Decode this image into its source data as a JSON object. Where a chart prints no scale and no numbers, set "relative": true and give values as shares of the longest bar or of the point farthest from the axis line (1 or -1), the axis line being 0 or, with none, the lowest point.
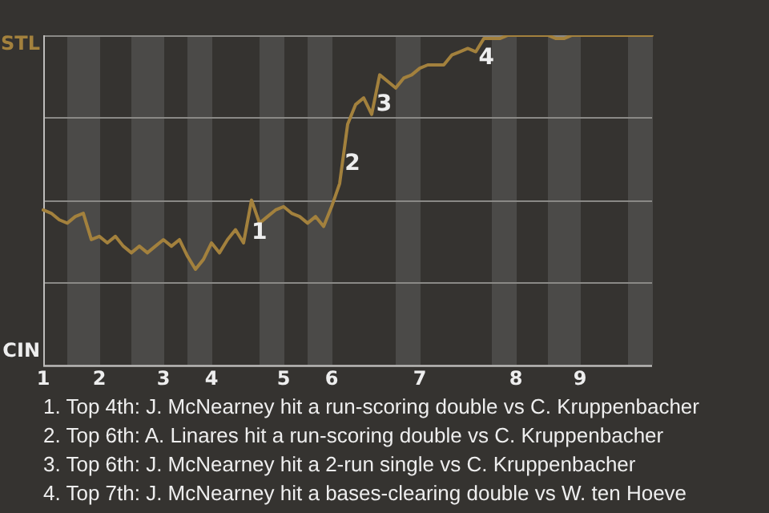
{
  "chart_data": {
    "type": "line",
    "categories": [
      "1",
      null,
      null,
      null,
      null,
      null,
      null,
      "2",
      null,
      null,
      null,
      null,
      null,
      null,
      null,
      "3",
      null,
      null,
      null,
      null,
      null,
      "4",
      null,
      null,
      null,
      null,
      null,
      null,
      null,
      null,
      "5",
      null,
      null,
      null,
      null,
      null,
      "6",
      null,
      null,
      null,
      null,
      null,
      null,
      null,
      null,
      null,
      null,
      "7",
      null,
      null,
      null,
      null,
      null,
      null,
      null,
      null,
      null,
      null,
      null,
      "8",
      null,
      null,
      null,
      null,
      null,
      null,
      null,
      "9",
      null,
      null,
      null,
      null,
      null,
      null,
      null,
      null,
      null
    ],
    "relative": true,
    "values": [
      0.47,
      0.46,
      0.44,
      0.43,
      0.45,
      0.46,
      0.38,
      0.39,
      0.37,
      0.39,
      0.36,
      0.34,
      0.36,
      0.34,
      0.36,
      0.38,
      0.36,
      0.38,
      0.33,
      0.29,
      0.32,
      0.37,
      0.34,
      0.38,
      0.41,
      0.37,
      0.5,
      0.43,
      0.45,
      0.47,
      0.48,
      0.46,
      0.45,
      0.43,
      0.45,
      0.42,
      0.48,
      0.55,
      0.73,
      0.79,
      0.81,
      0.76,
      0.88,
      0.86,
      0.84,
      0.87,
      0.88,
      0.9,
      0.91,
      0.91,
      0.91,
      0.94,
      0.95,
      0.96,
      0.95,
      0.99,
      0.99,
      0.99,
      1,
      1,
      1,
      1,
      1,
      1,
      0.99,
      0.99,
      1,
      1,
      1,
      1,
      1,
      1,
      1,
      1,
      1,
      1,
      1
    ],
    "colors": [
      "#a3813d",
      "#a3813d",
      "#a3813d",
      "#a3813d",
      "#ffffff",
      "#ffffff",
      "#ffffff",
      "#ffffff",
      "#a3813d",
      "#a3813d",
      "#a3813d",
      "#a3813d",
      "#ffffff",
      "#ffffff",
      "#ffffff",
      "#ffffff",
      "#a3813d",
      "#a3813d",
      "#a3813d",
      "#ffffff",
      "#ffffff",
      "#ffffff",
      "#a3813d",
      "#a3813d",
      "#a3813d",
      "#a3813d",
      "#a3813d",
      "#a3813d",
      "#ffffff",
      "#ffffff",
      "#ffffff",
      "#a3813d",
      "#a3813d",
      "#a3813d",
      "#ffffff",
      "#ffffff",
      "#ffffff",
      "#a3813d",
      "#a3813d",
      "#a3813d",
      "#a3813d",
      "#a3813d",
      "#a3813d",
      "#a3813d",
      "#a3813d",
      "#ffffff",
      "#ffffff",
      "#ffffff",
      "#a3813d",
      "#a3813d",
      "#a3813d",
      "#a3813d",
      "#a3813d",
      "#a3813d",
      "#a3813d",
      "#a3813d",
      "#a3813d",
      "#ffffff",
      "#ffffff",
      "#ffffff",
      "#a3813d",
      "#a3813d",
      "#a3813d",
      "#a3813d",
      "#ffffff",
      "#ffffff",
      "#ffffff",
      "#ffffff",
      "#a3813d",
      "#a3813d",
      "#a3813d",
      "#a3813d",
      "#a3813d",
      "#a3813d",
      "#ffffff",
      "#ffffff",
      "#ffffff"
    ],
    "grid": "y",
    "annotations": [
      "STL",
      "CIN",
      "1",
      "2",
      "3",
      "4",
      "1. Top 4th: J. McNearney hit a run-scoring double vs C. Kruppenbacher",
      "2. Top 6th: A. Linares hit a run-scoring double vs C. Kruppenbacher",
      "3. Top 6th: J. McNearney hit a 2-run single vs C. Kruppenbacher",
      "4. Top 7th: J. McNearney hit a bases-clearing double vs W. ten Hoeve"
    ]
  }
}
